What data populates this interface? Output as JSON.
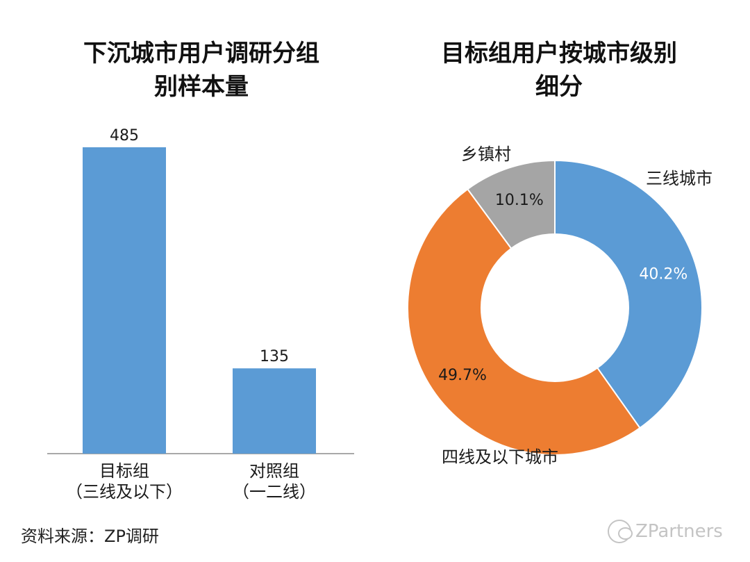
{
  "chart_data": [
    {
      "type": "bar",
      "title_lines": [
        "下沉城市用户调研分组",
        "别样本量"
      ],
      "categories": [
        {
          "line1": "目标组",
          "line2": "（三线及以下）"
        },
        {
          "line1": "对照组",
          "line2": "（一二线）"
        }
      ],
      "values": [
        485,
        135
      ],
      "data_labels": [
        "485",
        "135"
      ],
      "ylim": [
        0,
        485
      ],
      "color": "#5b9bd5",
      "grid": false
    },
    {
      "type": "pie",
      "style": "donut",
      "title_lines": [
        "目标组用户按城市级别",
        "细分"
      ],
      "slices": [
        {
          "label": "三线城市",
          "value": 40.2,
          "pct_label": "40.2%",
          "color": "#5b9bd5",
          "pct_text_color": "#ffffff"
        },
        {
          "label": "四线及以下城市",
          "value": 49.7,
          "pct_label": "49.7%",
          "color": "#ed7d31",
          "pct_text_color": "#1a1a1a"
        },
        {
          "label": "乡镇村",
          "value": 10.1,
          "pct_label": "10.1%",
          "color": "#a5a5a5",
          "pct_text_color": "#1a1a1a"
        }
      ]
    }
  ],
  "footer": {
    "source": "资料来源：ZP调研",
    "watermark": "ZPartners",
    "watermark_icon": "wechat-icon"
  }
}
